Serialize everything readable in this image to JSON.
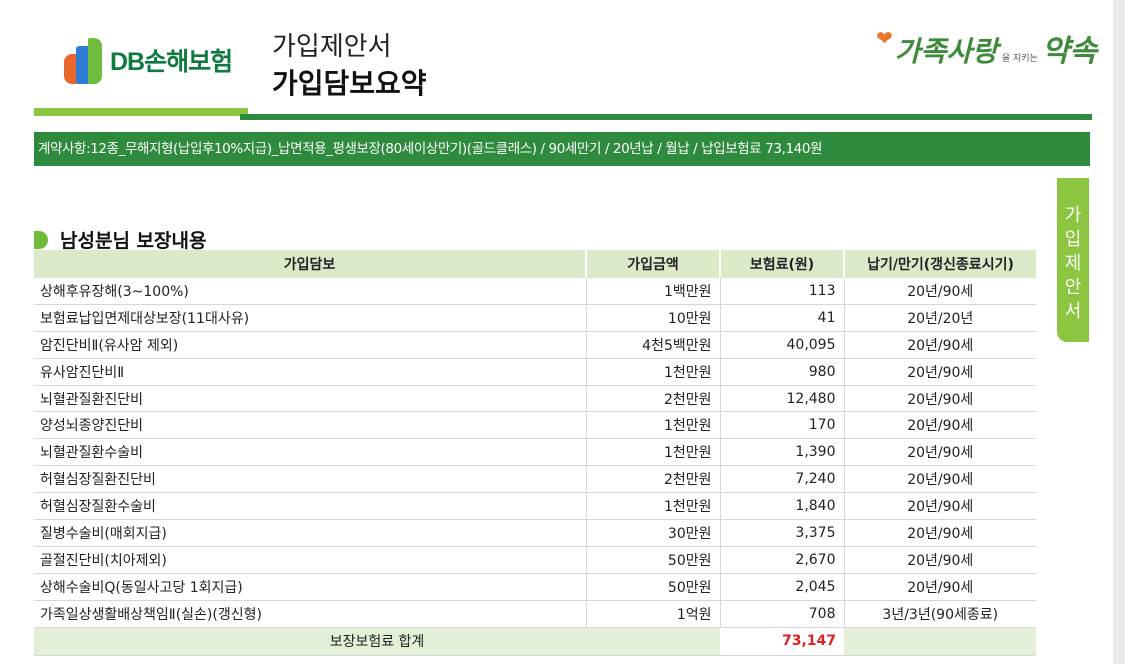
{
  "header": {
    "logo_text": "DB손해보험",
    "title": "가입제안서",
    "subtitle": "가입담보요약",
    "slogan_main": "가족사랑",
    "slogan_small": "을 지키는",
    "slogan_end": "약속"
  },
  "contract_summary": "계약사항:12종_무해지형(납입후10%지급)_납면적용_평생보장(80세이상만기)(골드클래스) / 90세만기 / 20년납 / 월납 / 납입보험료 73,140원",
  "side_tab": [
    "가",
    "입",
    "제",
    "안",
    "서"
  ],
  "section_title": "남성분님 보장내용",
  "table": {
    "headers": [
      "가입담보",
      "가입금액",
      "보험료(원)",
      "납기/만기(갱신종료시기)"
    ],
    "rows": [
      {
        "name": "상해후유장해(3~100%)",
        "amount": "1백만원",
        "premium": "113",
        "term": "20년/90세"
      },
      {
        "name": "보험료납입면제대상보장(11대사유)",
        "amount": "10만원",
        "premium": "41",
        "term": "20년/20년"
      },
      {
        "name": "암진단비Ⅱ(유사암 제외)",
        "amount": "4천5백만원",
        "premium": "40,095",
        "term": "20년/90세"
      },
      {
        "name": "유사암진단비Ⅱ",
        "amount": "1천만원",
        "premium": "980",
        "term": "20년/90세"
      },
      {
        "name": "뇌혈관질환진단비",
        "amount": "2천만원",
        "premium": "12,480",
        "term": "20년/90세"
      },
      {
        "name": "양성뇌종양진단비",
        "amount": "1천만원",
        "premium": "170",
        "term": "20년/90세"
      },
      {
        "name": "뇌혈관질환수술비",
        "amount": "1천만원",
        "premium": "1,390",
        "term": "20년/90세"
      },
      {
        "name": "허혈심장질환진단비",
        "amount": "2천만원",
        "premium": "7,240",
        "term": "20년/90세"
      },
      {
        "name": "허혈심장질환수술비",
        "amount": "1천만원",
        "premium": "1,840",
        "term": "20년/90세"
      },
      {
        "name": "질병수술비(매회지급)",
        "amount": "30만원",
        "premium": "3,375",
        "term": "20년/90세"
      },
      {
        "name": "골절진단비(치아제외)",
        "amount": "50만원",
        "premium": "2,670",
        "term": "20년/90세"
      },
      {
        "name": "상해수술비Q(동일사고당 1회지급)",
        "amount": "50만원",
        "premium": "2,045",
        "term": "20년/90세"
      },
      {
        "name": "가족일상생활배상책임Ⅱ(실손)(갱신형)",
        "amount": "1억원",
        "premium": "708",
        "term": "3년/3년(90세종료)"
      }
    ],
    "total_label": "보장보험료 합계",
    "total_value": "73,147"
  },
  "colors": {
    "brand_green": "#2e8b3e",
    "light_green": "#8cc53f",
    "header_bg": "#dbe9c9",
    "total_red": "#e02020"
  }
}
